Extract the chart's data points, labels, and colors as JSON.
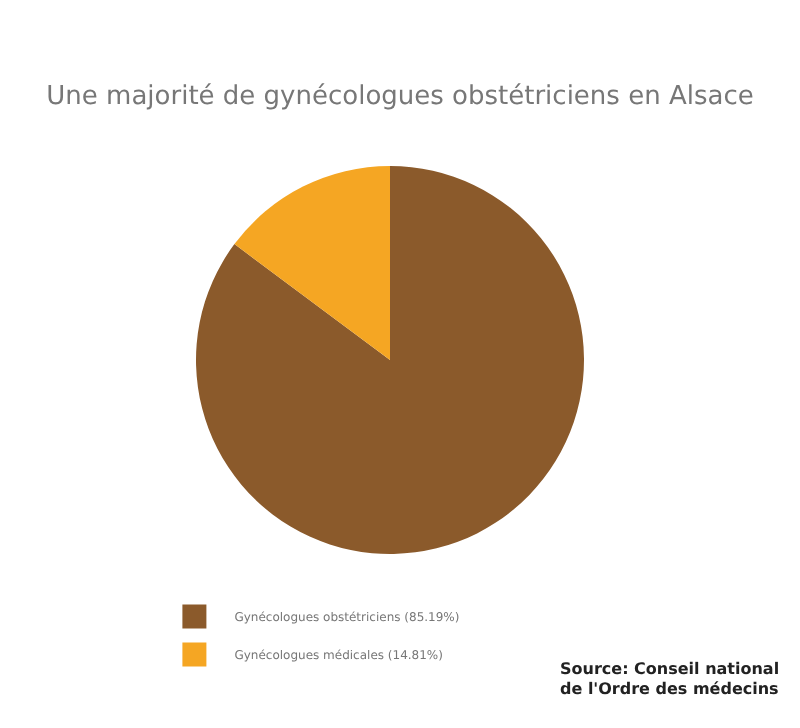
{
  "chart_data": {
    "type": "pie",
    "title": "Une majorité de gynécologues obstétriciens en Alsace",
    "categories": [
      "Gynécologues obstétriciens (85.19%)",
      "Gynécologues médicales (14.81%)"
    ],
    "values": [
      85.19,
      14.81
    ],
    "colors": [
      "#8b5a2b",
      "#f5a623"
    ],
    "legend": "bottom",
    "annotations": [
      "Source: Conseil national de l'Ordre des médecins"
    ]
  }
}
